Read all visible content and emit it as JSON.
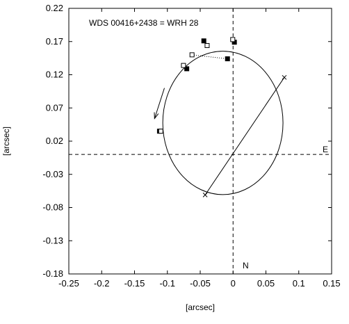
{
  "chart_data": {
    "type": "scatter",
    "title": "WDS 00416+2438 = WRH 28",
    "xlabel": "[arcsec]",
    "ylabel": "[arcsec]",
    "xlim": [
      -0.25,
      0.15
    ],
    "ylim": [
      -0.18,
      0.22
    ],
    "x_ticks": [
      "-0.25",
      "-0.2",
      "-0.15",
      "-0.1",
      "-0.05",
      "0",
      "0.05",
      "0.1",
      "0.15"
    ],
    "y_ticks": [
      "0.22",
      "0.17",
      "0.12",
      "0.07",
      "0.02",
      "-0.03",
      "-0.08",
      "-0.13",
      "-0.18"
    ],
    "grid": false,
    "axis_labels": {
      "east": "E",
      "north": "N"
    },
    "filled_points": [
      {
        "x": -0.0445,
        "y": 0.171
      },
      {
        "x": -0.0085,
        "y": 0.144
      },
      {
        "x": -0.0705,
        "y": 0.129
      },
      {
        "x": -0.112,
        "y": 0.035
      },
      {
        "x": 0.002,
        "y": 0.169
      }
    ],
    "open_squares": [
      {
        "x": -0.0395,
        "y": 0.164
      },
      {
        "x": -0.0625,
        "y": 0.15
      },
      {
        "x": -0.0755,
        "y": 0.134
      },
      {
        "x": -0.11,
        "y": 0.035
      },
      {
        "x": -0.0005,
        "y": 0.173
      }
    ],
    "dotted_link": [
      {
        "x": -0.0625,
        "y": 0.15
      },
      {
        "x": -0.0085,
        "y": 0.144
      }
    ],
    "orbit": {
      "center": {
        "x": -0.0155,
        "y": 0.0475
      },
      "semi_axis_x": 0.0915,
      "semi_axis_y": 0.108
    },
    "line_of_nodes": [
      {
        "x": 0.078,
        "y": 0.116
      },
      {
        "x": -0.0425,
        "y": -0.061
      }
    ],
    "motion_arrow": {
      "from": {
        "x": -0.1045,
        "y": 0.1
      },
      "to": {
        "x": -0.1195,
        "y": 0.054
      }
    }
  }
}
